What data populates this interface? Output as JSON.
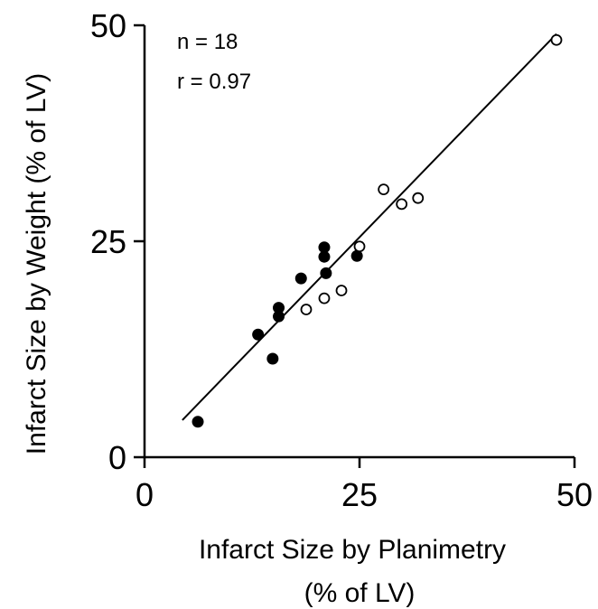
{
  "chart_data": {
    "type": "scatter",
    "title": "",
    "xlabel_line1": "Infarct Size by Planimetry",
    "xlabel_line2": "(% of LV)",
    "ylabel": "Infarct Size by Weight (% of LV)",
    "xlim": [
      0,
      50
    ],
    "ylim": [
      0,
      50
    ],
    "xticks": [
      0,
      25,
      50
    ],
    "yticks": [
      0,
      25,
      50
    ],
    "xtick_labels": [
      "0",
      "25",
      "50"
    ],
    "ytick_labels": [
      "0",
      "25",
      "50"
    ],
    "grid": false,
    "legend": "none",
    "annotations": [
      "n = 18",
      "r = 0.97"
    ],
    "series": [
      {
        "marker": "filled-circle",
        "color": "#000000",
        "points": [
          {
            "x": 6.2,
            "y": 4.1
          },
          {
            "x": 13.2,
            "y": 14.2
          },
          {
            "x": 14.9,
            "y": 11.4
          },
          {
            "x": 15.6,
            "y": 17.3
          },
          {
            "x": 15.6,
            "y": 16.3
          },
          {
            "x": 18.2,
            "y": 20.7
          },
          {
            "x": 20.9,
            "y": 24.3
          },
          {
            "x": 20.9,
            "y": 23.2
          },
          {
            "x": 21.1,
            "y": 21.3
          },
          {
            "x": 24.7,
            "y": 23.3
          }
        ]
      },
      {
        "marker": "open-circle",
        "color": "#000000",
        "points": [
          {
            "x": 18.8,
            "y": 17.1
          },
          {
            "x": 20.9,
            "y": 18.4
          },
          {
            "x": 22.9,
            "y": 19.3
          },
          {
            "x": 25.0,
            "y": 24.4
          },
          {
            "x": 27.8,
            "y": 31.0
          },
          {
            "x": 29.9,
            "y": 29.3
          },
          {
            "x": 31.8,
            "y": 30.0
          },
          {
            "x": 47.9,
            "y": 48.3
          }
        ]
      }
    ],
    "regression_line": {
      "x": [
        4.4,
        47.9
      ],
      "y": [
        4.3,
        49.0
      ]
    }
  }
}
